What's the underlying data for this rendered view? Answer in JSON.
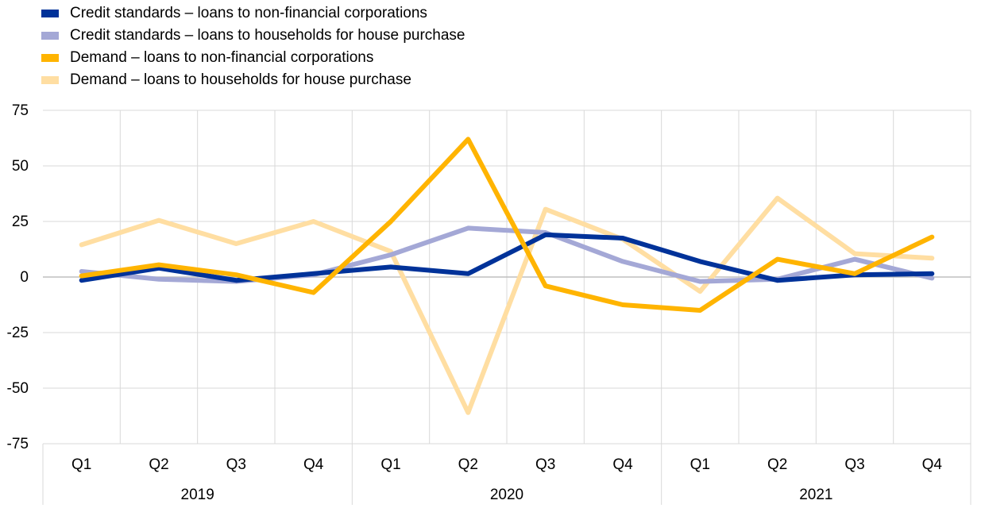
{
  "chart_data": {
    "type": "line",
    "title": "",
    "xlabel": "",
    "ylabel": "",
    "ylim": [
      -75,
      75
    ],
    "yticks": [
      75,
      50,
      25,
      0,
      -25,
      -50,
      -75
    ],
    "grid": true,
    "legend_position": "top-left",
    "categories": [
      "Q1",
      "Q2",
      "Q3",
      "Q4",
      "Q1",
      "Q2",
      "Q3",
      "Q4",
      "Q1",
      "Q2",
      "Q3",
      "Q4"
    ],
    "groups": [
      {
        "label": "2019",
        "span": 4
      },
      {
        "label": "2020",
        "span": 4
      },
      {
        "label": "2021",
        "span": 4
      }
    ],
    "series": [
      {
        "name": "Credit standards – loans to non-financial corporations",
        "color": "#003299",
        "values": [
          -1.5,
          4,
          -1.5,
          1.5,
          4.5,
          1.5,
          19,
          17.5,
          7,
          -1.5,
          1,
          1.5
        ]
      },
      {
        "name": "Credit standards – loans to households for house purchase",
        "color": "#a4a8d6",
        "values": [
          2.5,
          -1,
          -2,
          1,
          10,
          22,
          20,
          7,
          -2,
          -1,
          8,
          -0.5
        ]
      },
      {
        "name": "Demand – loans to non-financial corporations",
        "color": "#ffb400",
        "values": [
          0.5,
          5.5,
          1,
          -7,
          25,
          62,
          -4,
          -12.5,
          -15,
          8,
          1.5,
          18
        ]
      },
      {
        "name": "Demand – loans to households for house purchase",
        "color": "#ffdea2",
        "values": [
          14.5,
          25.5,
          15,
          25,
          11.5,
          -61,
          30.5,
          17,
          -6.5,
          35.5,
          10.5,
          8.5
        ]
      }
    ]
  }
}
